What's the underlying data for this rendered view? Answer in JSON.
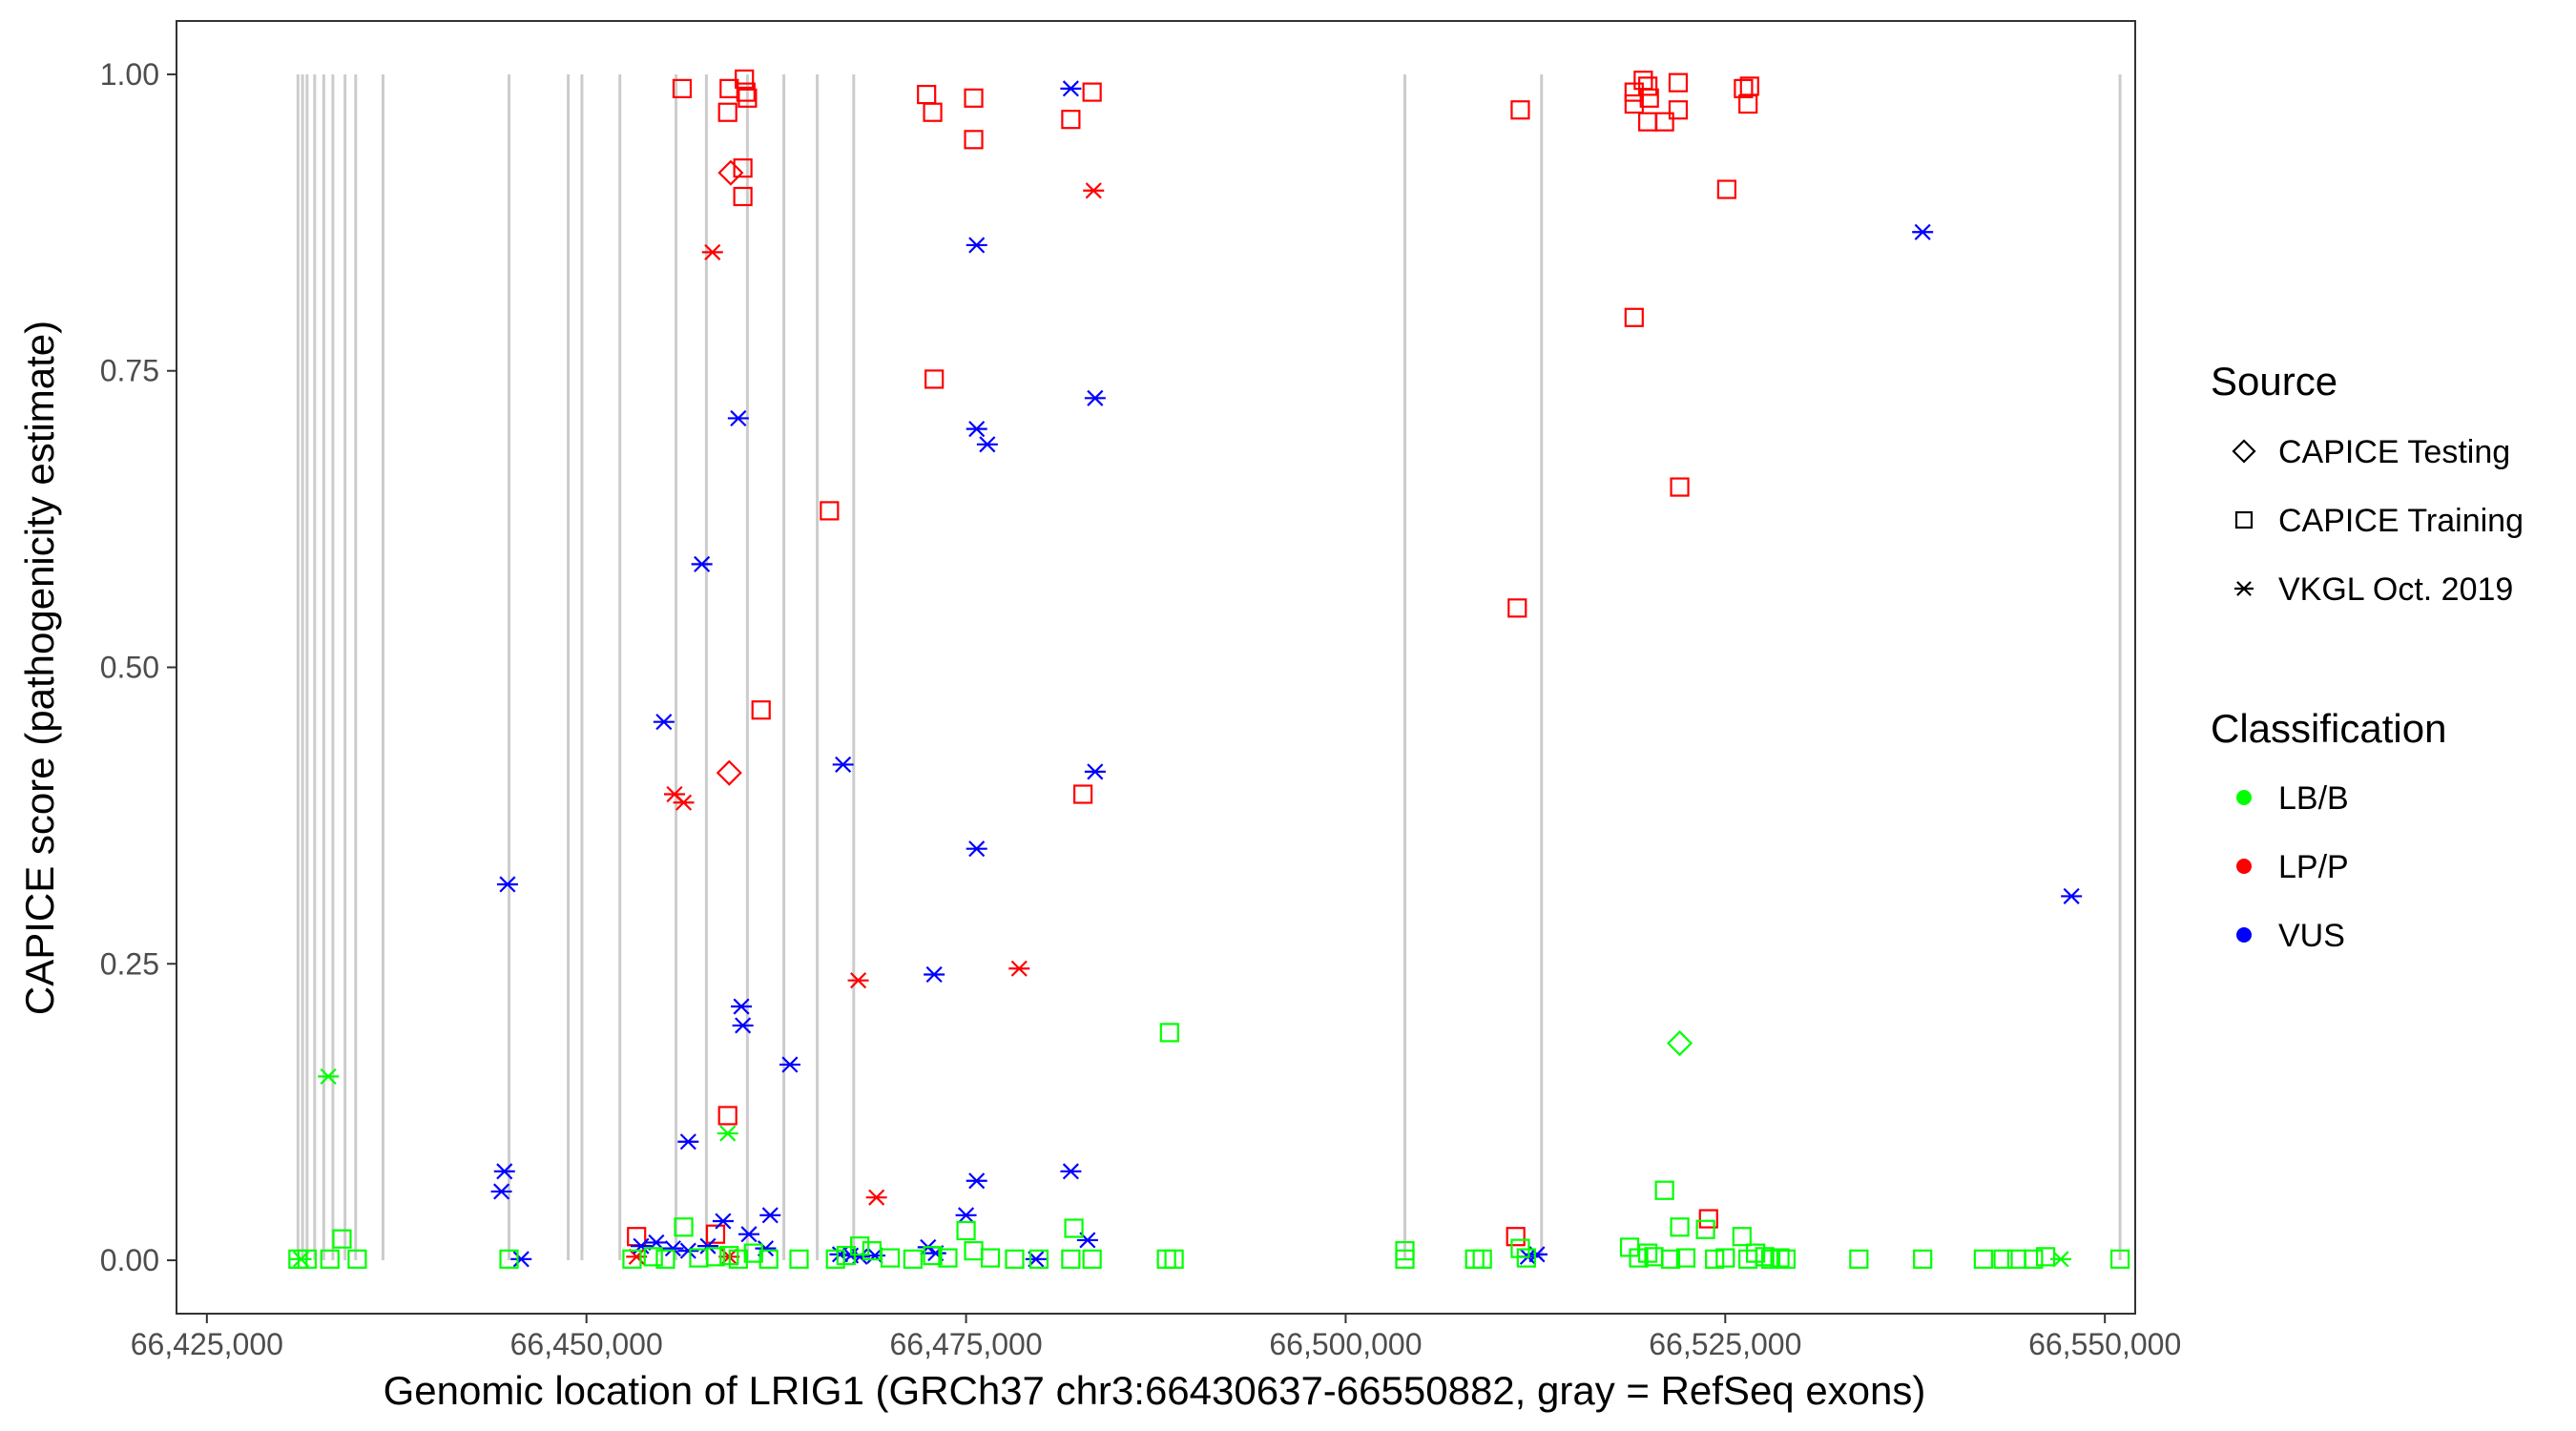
{
  "chart_data": {
    "type": "scatter",
    "title": "",
    "xlabel": "Genomic location of LRIG1 (GRCh37 chr3:66430637-66550882, gray = RefSeq exons)",
    "ylabel": "CAPICE score (pathogenicity estimate)",
    "xlim": [
      66423000,
      66552000
    ],
    "ylim": [
      -0.045,
      1.045
    ],
    "x_ticks": [
      66425000,
      66450000,
      66475000,
      66500000,
      66525000,
      66550000
    ],
    "x_tick_labels": [
      "66,425,000",
      "66,450,000",
      "66,475,000",
      "66,500,000",
      "66,525,000",
      "66,550,000"
    ],
    "y_ticks": [
      0,
      0.25,
      0.5,
      0.75,
      1.0
    ],
    "y_tick_labels": [
      "0.00",
      "0.25",
      "0.50",
      "0.75",
      "1.00"
    ],
    "grid": false,
    "exons": [
      66431000,
      66431300,
      66431600,
      66432100,
      66432700,
      66433300,
      66434100,
      66434800,
      66436600,
      66444900,
      66448800,
      66449700,
      66452200,
      66455900,
      66457900,
      66460600,
      66463000,
      66465200,
      66467600,
      66503900,
      66512900,
      66551000
    ],
    "colors": {
      "LB/B": "#00ff00",
      "LP/P": "#ff0000",
      "VUS": "#0000ff",
      "exon": "#cccccc"
    },
    "legend": {
      "position": "right",
      "source_title": "Source",
      "source_items": [
        {
          "label": "CAPICE Testing",
          "shape": "diamond"
        },
        {
          "label": "CAPICE Training",
          "shape": "square"
        },
        {
          "label": "VKGL Oct. 2019",
          "shape": "asterisk"
        }
      ],
      "class_title": "Classification",
      "class_items": [
        {
          "label": "LB/B",
          "color": "#00ff00"
        },
        {
          "label": "LP/P",
          "color": "#ff0000"
        },
        {
          "label": "VUS",
          "color": "#0000ff"
        }
      ]
    },
    "series": [
      {
        "name": "CAPICE Training LP/P",
        "source": "CAPICE Training",
        "classification": "LP/P",
        "shape": "square",
        "color": "#ff0000",
        "points": [
          [
            66456300,
            0.988
          ],
          [
            66459400,
            0.988
          ],
          [
            66460400,
            0.996
          ],
          [
            66460500,
            0.985
          ],
          [
            66460600,
            0.98
          ],
          [
            66459300,
            0.968
          ],
          [
            66460300,
            0.921
          ],
          [
            66460300,
            0.897
          ],
          [
            66472400,
            0.983
          ],
          [
            66472800,
            0.968
          ],
          [
            66475500,
            0.98
          ],
          [
            66475500,
            0.945
          ],
          [
            66481900,
            0.962
          ],
          [
            66483300,
            0.985
          ],
          [
            66472900,
            0.743
          ],
          [
            66466000,
            0.632
          ],
          [
            66461500,
            0.464
          ],
          [
            66482700,
            0.393
          ],
          [
            66459300,
            0.122
          ],
          [
            66453300,
            0.02
          ],
          [
            66458500,
            0.022
          ],
          [
            66511500,
            0.97
          ],
          [
            66511300,
            0.55
          ],
          [
            66511200,
            0.02
          ],
          [
            66519000,
            0.985
          ],
          [
            66519000,
            0.975
          ],
          [
            66519600,
            0.995
          ],
          [
            66519900,
            0.99
          ],
          [
            66520000,
            0.98
          ],
          [
            66519900,
            0.96
          ],
          [
            66521000,
            0.96
          ],
          [
            66521900,
            0.993
          ],
          [
            66521900,
            0.97
          ],
          [
            66526200,
            0.988
          ],
          [
            66526600,
            0.99
          ],
          [
            66526500,
            0.975
          ],
          [
            66525100,
            0.903
          ],
          [
            66519000,
            0.795
          ],
          [
            66522000,
            0.652
          ],
          [
            66523900,
            0.035
          ]
        ]
      },
      {
        "name": "CAPICE Testing LP/P",
        "source": "CAPICE Testing",
        "classification": "LP/P",
        "shape": "diamond",
        "color": "#ff0000",
        "points": [
          [
            66459500,
            0.917
          ],
          [
            66459400,
            0.411
          ]
        ]
      },
      {
        "name": "VKGL Oct. 2019 LP/P",
        "source": "VKGL Oct. 2019",
        "classification": "LP/P",
        "shape": "asterisk",
        "color": "#ff0000",
        "points": [
          [
            66458300,
            0.85
          ],
          [
            66483400,
            0.902
          ],
          [
            66455800,
            0.393
          ],
          [
            66456400,
            0.386
          ],
          [
            66467900,
            0.236
          ],
          [
            66478500,
            0.246
          ],
          [
            66469100,
            0.053
          ],
          [
            66453300,
            0.003
          ],
          [
            66459400,
            0.003
          ]
        ]
      },
      {
        "name": "VKGL Oct. 2019 VUS",
        "source": "VKGL Oct. 2019",
        "classification": "VUS",
        "shape": "asterisk",
        "color": "#0000ff",
        "points": [
          [
            66481900,
            0.988
          ],
          [
            66475700,
            0.856
          ],
          [
            66483500,
            0.727
          ],
          [
            66460000,
            0.71
          ],
          [
            66475700,
            0.701
          ],
          [
            66476400,
            0.688
          ],
          [
            66457600,
            0.587
          ],
          [
            66455100,
            0.454
          ],
          [
            66466900,
            0.418
          ],
          [
            66483500,
            0.412
          ],
          [
            66475700,
            0.347
          ],
          [
            66444800,
            0.317
          ],
          [
            66472900,
            0.241
          ],
          [
            66460200,
            0.214
          ],
          [
            66460300,
            0.198
          ],
          [
            66463400,
            0.165
          ],
          [
            66456700,
            0.1
          ],
          [
            66444600,
            0.075
          ],
          [
            66444400,
            0.058
          ],
          [
            66481900,
            0.075
          ],
          [
            66475700,
            0.067
          ],
          [
            66462100,
            0.038
          ],
          [
            66475000,
            0.038
          ],
          [
            66459000,
            0.033
          ],
          [
            66483000,
            0.017
          ],
          [
            66453600,
            0.012
          ],
          [
            66454600,
            0.015
          ],
          [
            66455700,
            0.01
          ],
          [
            66456700,
            0.008
          ],
          [
            66458000,
            0.012
          ],
          [
            66460700,
            0.022
          ],
          [
            66461800,
            0.01
          ],
          [
            66466700,
            0.005
          ],
          [
            66467400,
            0.004
          ],
          [
            66468000,
            0.003
          ],
          [
            66469000,
            0.004
          ],
          [
            66472500,
            0.011
          ],
          [
            66473000,
            0.006
          ],
          [
            66479600,
            0.001
          ],
          [
            66445700,
            0.001
          ],
          [
            66512000,
            0.003
          ],
          [
            66512600,
            0.005
          ],
          [
            66538000,
            0.867
          ],
          [
            66547800,
            0.307
          ]
        ]
      },
      {
        "name": "VKGL Oct. 2019 LB/B",
        "source": "VKGL Oct. 2019",
        "classification": "LB/B",
        "shape": "asterisk",
        "color": "#00ff00",
        "points": [
          [
            66433000,
            0.155
          ],
          [
            66459300,
            0.107
          ],
          [
            66431200,
            0.001
          ],
          [
            66547100,
            0.001
          ]
        ]
      },
      {
        "name": "CAPICE Testing LB/B",
        "source": "CAPICE Testing",
        "classification": "LB/B",
        "shape": "diamond",
        "color": "#00ff00",
        "points": [
          [
            66522000,
            0.183
          ]
        ]
      },
      {
        "name": "CAPICE Training LB/B",
        "source": "CAPICE Training",
        "classification": "LB/B",
        "shape": "square",
        "color": "#00ff00",
        "points": [
          [
            66431000,
            0.001
          ],
          [
            66431600,
            0.001
          ],
          [
            66433100,
            0.001
          ],
          [
            66433900,
            0.018
          ],
          [
            66434900,
            0.001
          ],
          [
            66444900,
            0.001
          ],
          [
            66453000,
            0.001
          ],
          [
            66454400,
            0.003
          ],
          [
            66455200,
            0.001
          ],
          [
            66456400,
            0.028
          ],
          [
            66457400,
            0.002
          ],
          [
            66458500,
            0.003
          ],
          [
            66459400,
            0.004
          ],
          [
            66460000,
            0.001
          ],
          [
            66461000,
            0.006
          ],
          [
            66462000,
            0.001
          ],
          [
            66464000,
            0.001
          ],
          [
            66466400,
            0.001
          ],
          [
            66467100,
            0.004
          ],
          [
            66468000,
            0.012
          ],
          [
            66468800,
            0.008
          ],
          [
            66470000,
            0.002
          ],
          [
            66471500,
            0.001
          ],
          [
            66472800,
            0.004
          ],
          [
            66473800,
            0.002
          ],
          [
            66475000,
            0.025
          ],
          [
            66475500,
            0.008
          ],
          [
            66476600,
            0.002
          ],
          [
            66478200,
            0.001
          ],
          [
            66479800,
            0.001
          ],
          [
            66481900,
            0.001
          ],
          [
            66482100,
            0.027
          ],
          [
            66483300,
            0.001
          ],
          [
            66488400,
            0.192
          ],
          [
            66488200,
            0.001
          ],
          [
            66488700,
            0.001
          ],
          [
            66503900,
            0.008
          ],
          [
            66503900,
            0.001
          ],
          [
            66508500,
            0.001
          ],
          [
            66509000,
            0.001
          ],
          [
            66511500,
            0.01
          ],
          [
            66511900,
            0.002
          ],
          [
            66518700,
            0.011
          ],
          [
            66519300,
            0.002
          ],
          [
            66519900,
            0.006
          ],
          [
            66520300,
            0.003
          ],
          [
            66521000,
            0.059
          ],
          [
            66521400,
            0.001
          ],
          [
            66522000,
            0.028
          ],
          [
            66522400,
            0.002
          ],
          [
            66523700,
            0.026
          ],
          [
            66524300,
            0.001
          ],
          [
            66525000,
            0.002
          ],
          [
            66526100,
            0.02
          ],
          [
            66526500,
            0.001
          ],
          [
            66527000,
            0.006
          ],
          [
            66527600,
            0.003
          ],
          [
            66528000,
            0.001
          ],
          [
            66528600,
            0.002
          ],
          [
            66529000,
            0.001
          ],
          [
            66533800,
            0.001
          ],
          [
            66538000,
            0.001
          ],
          [
            66542000,
            0.001
          ],
          [
            66543300,
            0.001
          ],
          [
            66544200,
            0.001
          ],
          [
            66545300,
            0.001
          ],
          [
            66546100,
            0.003
          ],
          [
            66551000,
            0.001
          ]
        ]
      }
    ]
  }
}
